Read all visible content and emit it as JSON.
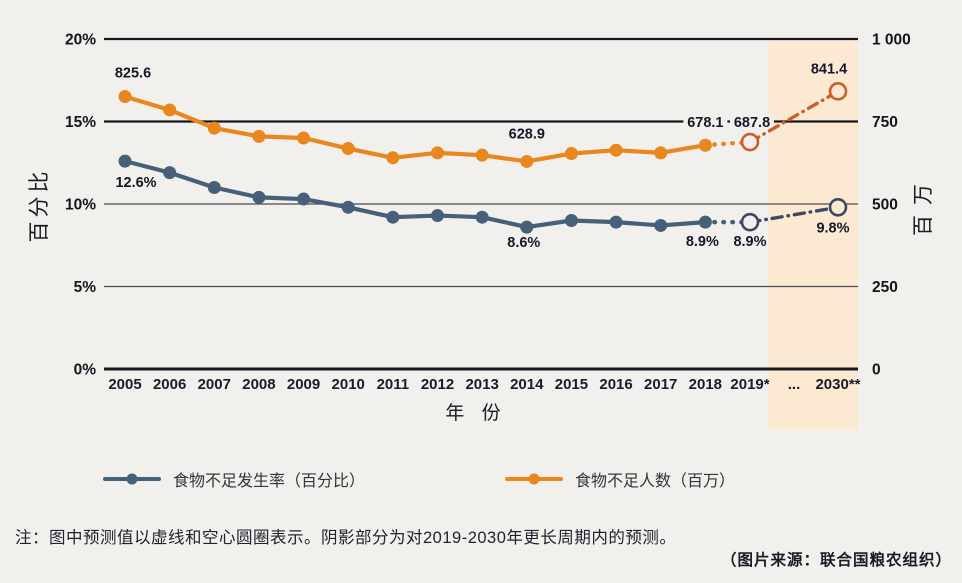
{
  "page": {
    "background": "#f1f0ec"
  },
  "note": "注：图中预测值以虚线和空心圆圈表示。阴影部分为对2019-2030年更长周期内的预测。",
  "source": "（图片来源：联合国粮农组织）",
  "legend": [
    {
      "label": "食物不足发生率（百分比）",
      "color": "#46607a"
    },
    {
      "label": "食物不足人数（百万）",
      "color": "#e8871e"
    }
  ],
  "chart_data": {
    "type": "line",
    "x_axis": {
      "title": "年 份",
      "categories": [
        {
          "label": "2005",
          "year": 2005
        },
        {
          "label": "2006",
          "year": 2006
        },
        {
          "label": "2007",
          "year": 2007
        },
        {
          "label": "2008",
          "year": 2008
        },
        {
          "label": "2009",
          "year": 2009
        },
        {
          "label": "2010",
          "year": 2010
        },
        {
          "label": "2011",
          "year": 2011
        },
        {
          "label": "2012",
          "year": 2012
        },
        {
          "label": "2013",
          "year": 2013
        },
        {
          "label": "2014",
          "year": 2014
        },
        {
          "label": "2015",
          "year": 2015
        },
        {
          "label": "2016",
          "year": 2016
        },
        {
          "label": "2017",
          "year": 2017
        },
        {
          "label": "2018",
          "year": 2018
        },
        {
          "label": "2019*",
          "year": 2019
        },
        {
          "label": "...",
          "year": null
        },
        {
          "label": "2030**",
          "year": 2030
        }
      ]
    },
    "left_axis": {
      "title": "百分比",
      "tick_labels": [
        "20%",
        "15%",
        "10%",
        "5%",
        "0%"
      ],
      "tick_values": [
        20,
        15,
        10,
        5,
        0
      ],
      "range": [
        0,
        20
      ]
    },
    "right_axis": {
      "title": "百万",
      "tick_labels": [
        "1 000",
        "750",
        "500",
        "250",
        "0"
      ],
      "tick_values": [
        1000,
        750,
        500,
        250,
        0
      ],
      "range": [
        0,
        1000
      ]
    },
    "shaded_region": {
      "from_year": 2019,
      "to_year": 2030,
      "color": "#fbe9d2"
    },
    "series": [
      {
        "name": "食物不足发生率（百分比）",
        "axis": "left",
        "unit": "%",
        "color": "#46607a",
        "projection_color": "#3e4862",
        "projection_from_year": 2019,
        "points": [
          {
            "year": 2005,
            "value": 12.6
          },
          {
            "year": 2006,
            "value": 11.9
          },
          {
            "year": 2007,
            "value": 11.0
          },
          {
            "year": 2008,
            "value": 10.4
          },
          {
            "year": 2009,
            "value": 10.3
          },
          {
            "year": 2010,
            "value": 9.8
          },
          {
            "year": 2011,
            "value": 9.2
          },
          {
            "year": 2012,
            "value": 9.3
          },
          {
            "year": 2013,
            "value": 9.2
          },
          {
            "year": 2014,
            "value": 8.6
          },
          {
            "year": 2015,
            "value": 9.0
          },
          {
            "year": 2016,
            "value": 8.9
          },
          {
            "year": 2017,
            "value": 8.7
          },
          {
            "year": 2018,
            "value": 8.9
          },
          {
            "year": 2019,
            "value": 8.9
          },
          {
            "year": 2030,
            "value": 9.8
          }
        ],
        "labels": [
          {
            "year": 2005,
            "text": "12.6%",
            "dx": 11,
            "dy": 26
          },
          {
            "year": 2014,
            "text": "8.6%",
            "dx": -3,
            "dy": 20
          },
          {
            "year": 2018,
            "text": "8.9%",
            "dx": -3,
            "dy": 24
          },
          {
            "year": 2019,
            "text": "8.9%",
            "dx": 0,
            "dy": 24
          },
          {
            "year": 2030,
            "text": "9.8%",
            "dx": -5,
            "dy": 25
          }
        ]
      },
      {
        "name": "食物不足人数（百万）",
        "axis": "right",
        "unit": "百万",
        "color": "#e8871e",
        "projection_color": "#c9602b",
        "projection_from_year": 2019,
        "points": [
          {
            "year": 2005,
            "value": 825.6
          },
          {
            "year": 2006,
            "value": 785
          },
          {
            "year": 2007,
            "value": 730
          },
          {
            "year": 2008,
            "value": 705
          },
          {
            "year": 2009,
            "value": 700
          },
          {
            "year": 2010,
            "value": 668
          },
          {
            "year": 2011,
            "value": 640
          },
          {
            "year": 2012,
            "value": 655
          },
          {
            "year": 2013,
            "value": 648
          },
          {
            "year": 2014,
            "value": 628.9
          },
          {
            "year": 2015,
            "value": 653
          },
          {
            "year": 2016,
            "value": 663
          },
          {
            "year": 2017,
            "value": 655
          },
          {
            "year": 2018,
            "value": 678.1
          },
          {
            "year": 2019,
            "value": 687.8
          },
          {
            "year": 2030,
            "value": 841.4
          }
        ],
        "labels": [
          {
            "year": 2005,
            "text": "825.6",
            "dx": 8,
            "dy": -19
          },
          {
            "year": 2014,
            "text": "628.9",
            "dx": 0,
            "dy": -23
          },
          {
            "year": 2018,
            "text": "678.1",
            "dx": 0,
            "dy": -18,
            "bg": true
          },
          {
            "year": 2019,
            "text": "687.8",
            "dx": 2,
            "dy": -15,
            "bg": true
          },
          {
            "year": 2030,
            "text": "841.4",
            "dx": -9,
            "dy": -18
          }
        ]
      }
    ]
  }
}
